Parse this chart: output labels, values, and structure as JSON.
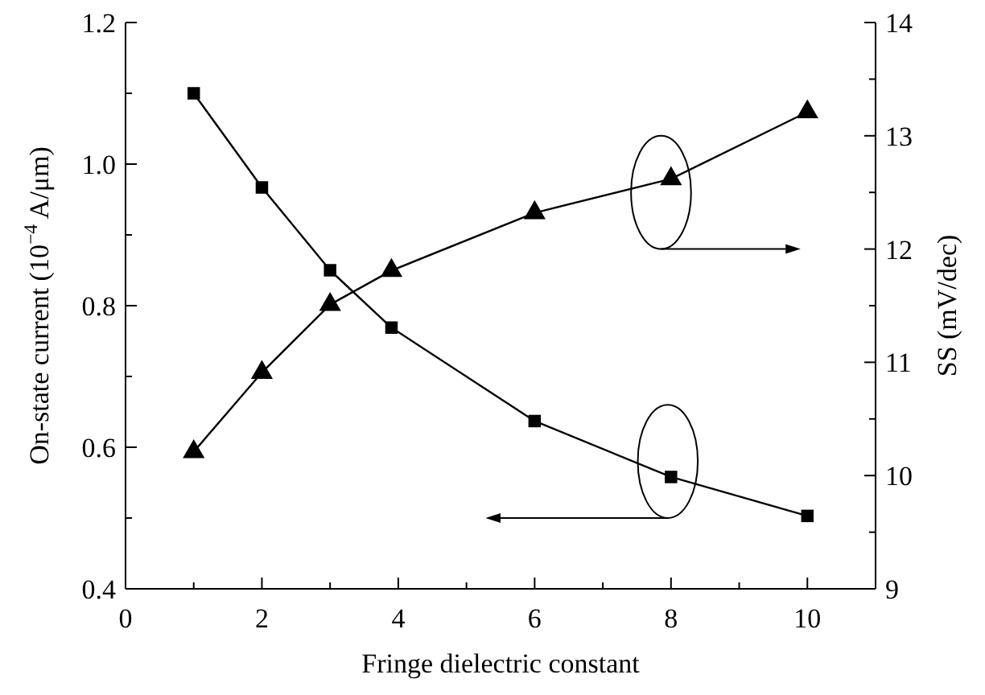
{
  "chart_data": {
    "type": "line",
    "xlabel": "Fringe dielectric constant",
    "ylabel": "On-state current (10$^{−4}$ A/μm)",
    "y2label": "SS (mV/dec)",
    "x": [
      1,
      2,
      3,
      3.9,
      6,
      8,
      10
    ],
    "series": [
      {
        "color": "#000000",
        "marker": "square",
        "values": [
          1.1,
          0.967,
          0.85,
          0.769,
          0.637,
          0.558,
          0.503
        ]
      },
      {
        "color": "#000000",
        "marker": "triangle",
        "axis": "y2",
        "values": [
          10.21,
          10.91,
          11.51,
          11.81,
          12.32,
          12.62,
          13.21
        ]
      }
    ],
    "xlim": [
      0,
      11
    ],
    "xticks": [
      0,
      {
        "value": 1,
        "label": null
      },
      2,
      {
        "value": 3,
        "label": null
      },
      4,
      {
        "value": 5,
        "label": null
      },
      6,
      {
        "value": 7,
        "label": null
      },
      8,
      {
        "value": 9,
        "label": null
      },
      10
    ],
    "ylim": [
      0.4,
      1.2
    ],
    "yticks": [
      {
        "value": 0.4,
        "label": "0.4"
      },
      {
        "value": 0.5,
        "label": null
      },
      {
        "value": 0.6,
        "label": "0.6"
      },
      {
        "value": 0.7,
        "label": null
      },
      {
        "value": 0.8,
        "label": "0.8"
      },
      {
        "value": 0.9,
        "label": null
      },
      {
        "value": 1.0,
        "label": "1.0"
      },
      {
        "value": 1.1,
        "label": null
      },
      {
        "value": 1.2,
        "label": "1.2"
      }
    ],
    "y2lim": [
      9,
      14
    ],
    "y2ticks": [
      9,
      {
        "value": 9.5,
        "label": null
      },
      10,
      {
        "value": 10.5,
        "label": null
      },
      11,
      {
        "value": 11.5,
        "label": null
      },
      12,
      {
        "value": 12.5,
        "label": null
      },
      13,
      {
        "value": 13.5,
        "label": null
      },
      14
    ],
    "grid": false,
    "line_style": "solid"
  }
}
